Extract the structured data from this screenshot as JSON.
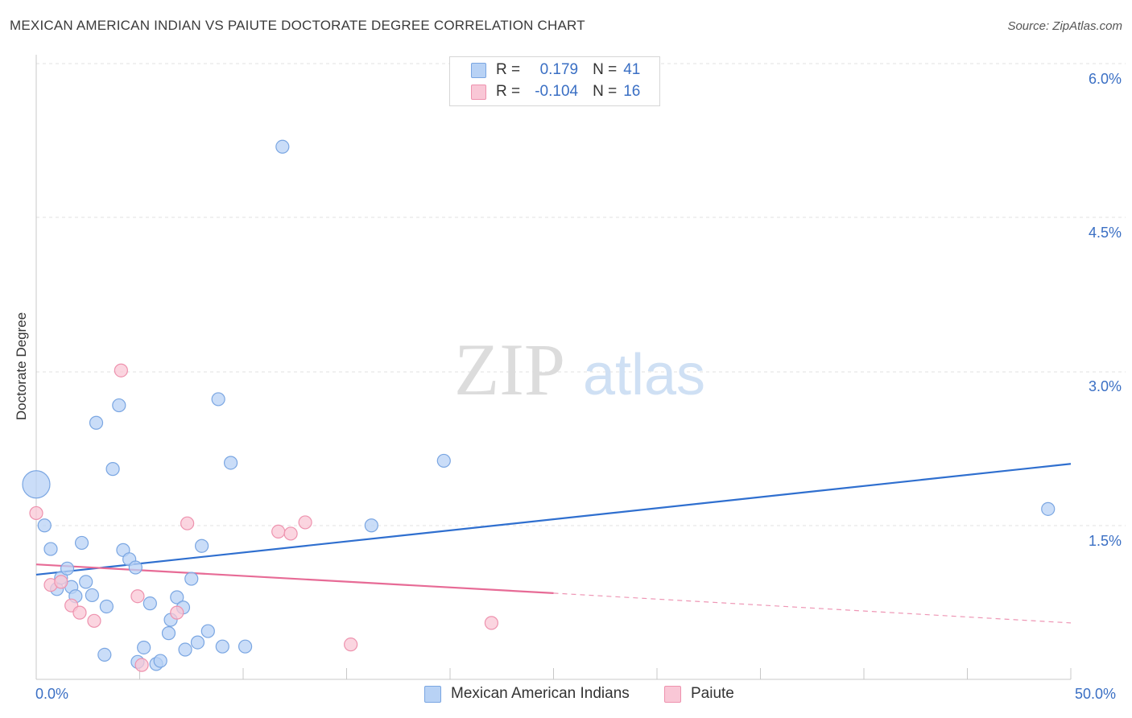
{
  "header": {
    "title": "MEXICAN AMERICAN INDIAN VS PAIUTE DOCTORATE DEGREE CORRELATION CHART",
    "source": "Source: ZipAtlas.com"
  },
  "legend": {
    "rows": [
      {
        "r_label": "R =",
        "r_value": "0.179",
        "n_label": "N =",
        "n_value": "41"
      },
      {
        "r_label": "R =",
        "r_value": "-0.104",
        "n_label": "N =",
        "n_value": "16"
      }
    ]
  },
  "bottom_legend": {
    "series1": "Mexican American Indians",
    "series2": "Paiute"
  },
  "watermark": {
    "zip": "ZIP",
    "atlas": "atlas"
  },
  "colors": {
    "series1_fill": "#b8d2f5",
    "series1_stroke": "#7aa6e2",
    "series1_line": "#2f6fcf",
    "series2_fill": "#f9c7d6",
    "series2_stroke": "#ee92ae",
    "series2_line": "#e76b96",
    "tick_text": "#3a6fc4"
  },
  "chart_data": {
    "type": "scatter",
    "title": "MEXICAN AMERICAN INDIAN VS PAIUTE DOCTORATE DEGREE CORRELATION CHART",
    "xlabel": "",
    "ylabel": "Doctorate Degree",
    "xlim": [
      0,
      50
    ],
    "ylim": [
      0,
      6.2
    ],
    "x_tick_labels": [
      "0.0%",
      "50.0%"
    ],
    "y_ticks": [
      1.5,
      3.0,
      4.5,
      6.0
    ],
    "y_tick_labels": [
      "1.5%",
      "3.0%",
      "4.5%",
      "6.0%"
    ],
    "grid": true,
    "legend_position": "top-center",
    "series": [
      {
        "name": "Mexican American Indians",
        "r": 0.179,
        "n": 41,
        "points": [
          {
            "x": 0.0,
            "y": 1.9,
            "big": true
          },
          {
            "x": 0.4,
            "y": 1.5
          },
          {
            "x": 0.7,
            "y": 1.27
          },
          {
            "x": 1.0,
            "y": 0.88
          },
          {
            "x": 1.2,
            "y": 0.99
          },
          {
            "x": 1.5,
            "y": 1.08
          },
          {
            "x": 1.7,
            "y": 0.9
          },
          {
            "x": 1.9,
            "y": 0.81
          },
          {
            "x": 2.2,
            "y": 1.33
          },
          {
            "x": 2.4,
            "y": 0.95
          },
          {
            "x": 2.7,
            "y": 0.82
          },
          {
            "x": 2.9,
            "y": 2.5
          },
          {
            "x": 3.3,
            "y": 0.24
          },
          {
            "x": 3.4,
            "y": 0.71
          },
          {
            "x": 3.7,
            "y": 2.05
          },
          {
            "x": 4.0,
            "y": 2.67
          },
          {
            "x": 4.2,
            "y": 1.26
          },
          {
            "x": 4.5,
            "y": 1.17
          },
          {
            "x": 4.8,
            "y": 1.09
          },
          {
            "x": 4.9,
            "y": 0.17
          },
          {
            "x": 5.2,
            "y": 0.31
          },
          {
            "x": 5.5,
            "y": 0.74
          },
          {
            "x": 5.8,
            "y": 0.15
          },
          {
            "x": 6.0,
            "y": 0.18
          },
          {
            "x": 6.4,
            "y": 0.45
          },
          {
            "x": 6.5,
            "y": 0.58
          },
          {
            "x": 6.8,
            "y": 0.8
          },
          {
            "x": 7.1,
            "y": 0.7
          },
          {
            "x": 7.2,
            "y": 0.29
          },
          {
            "x": 7.5,
            "y": 0.98
          },
          {
            "x": 7.8,
            "y": 0.36
          },
          {
            "x": 8.0,
            "y": 1.3
          },
          {
            "x": 8.3,
            "y": 0.47
          },
          {
            "x": 8.8,
            "y": 2.73
          },
          {
            "x": 9.0,
            "y": 0.32
          },
          {
            "x": 9.4,
            "y": 2.11
          },
          {
            "x": 10.1,
            "y": 0.32
          },
          {
            "x": 11.9,
            "y": 5.19
          },
          {
            "x": 16.2,
            "y": 1.5
          },
          {
            "x": 19.7,
            "y": 2.13
          },
          {
            "x": 48.9,
            "y": 1.66
          }
        ],
        "trend": {
          "x0": 0,
          "y0": 1.02,
          "x1": 50,
          "y1": 2.1
        }
      },
      {
        "name": "Paiute",
        "r": -0.104,
        "n": 16,
        "points": [
          {
            "x": 0.0,
            "y": 1.62
          },
          {
            "x": 0.7,
            "y": 0.92
          },
          {
            "x": 1.2,
            "y": 0.95
          },
          {
            "x": 1.7,
            "y": 0.72
          },
          {
            "x": 2.1,
            "y": 0.65
          },
          {
            "x": 2.8,
            "y": 0.57
          },
          {
            "x": 4.1,
            "y": 3.01
          },
          {
            "x": 4.9,
            "y": 0.81
          },
          {
            "x": 5.1,
            "y": 0.14
          },
          {
            "x": 6.8,
            "y": 0.65
          },
          {
            "x": 7.3,
            "y": 1.52
          },
          {
            "x": 11.7,
            "y": 1.44
          },
          {
            "x": 12.3,
            "y": 1.42
          },
          {
            "x": 13.0,
            "y": 1.53
          },
          {
            "x": 15.2,
            "y": 0.34
          },
          {
            "x": 22.0,
            "y": 0.55
          }
        ],
        "trend": {
          "x0": 0,
          "y0": 1.12,
          "x1": 25,
          "y1": 0.84,
          "dashed_to_x": 50,
          "dashed_to_y": 0.55
        }
      }
    ]
  }
}
